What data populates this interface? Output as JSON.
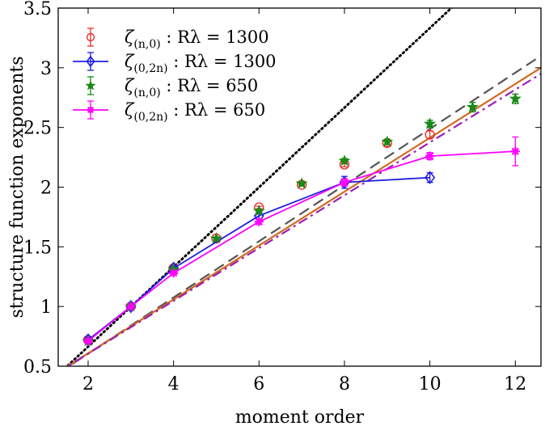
{
  "chart_data": {
    "type": "scatter",
    "xlabel": "moment order",
    "ylabel": "structure function exponents",
    "xlim": [
      1.3,
      12.6
    ],
    "ylim": [
      0.5,
      3.5
    ],
    "xticks": [
      2,
      4,
      6,
      8,
      10,
      12
    ],
    "yticks": [
      0.5,
      1,
      1.5,
      2,
      2.5,
      3,
      3.5
    ],
    "ytick_labels": [
      "0.5",
      "1",
      "1.5",
      "2",
      "2.5",
      "3",
      "3.5"
    ],
    "grid": false,
    "legend_position": "top-left",
    "series": [
      {
        "name": "ζ(n,0) : Rλ = 1300",
        "legend_main": "ζ",
        "legend_sub": "(n,0)",
        "legend_rest": " : Rλ = 1300",
        "color": "#e8302a",
        "marker": "open-circle",
        "line": false,
        "x": [
          2,
          3,
          4,
          5,
          6,
          7,
          8,
          9,
          10
        ],
        "y": [
          0.72,
          1.0,
          1.32,
          1.57,
          1.83,
          2.02,
          2.19,
          2.37,
          2.44
        ],
        "err": [
          0.01,
          0.0,
          0.01,
          0.01,
          0.01,
          0.01,
          0.02,
          0.03,
          0.03
        ]
      },
      {
        "name": "ζ(0,2n) : Rλ = 1300",
        "legend_main": "ζ",
        "legend_sub": "(0,2n)",
        "legend_rest": " : Rλ = 1300",
        "color": "#1f1fe0",
        "marker": "open-diamond",
        "line": true,
        "x": [
          2,
          3,
          4,
          6,
          8,
          10
        ],
        "y": [
          0.72,
          1.0,
          1.32,
          1.76,
          2.04,
          2.08
        ],
        "err": [
          0.02,
          0.0,
          0.02,
          0.03,
          0.05,
          0.04
        ]
      },
      {
        "name": "ζ(n,0) : Rλ = 650",
        "legend_main": "ζ",
        "legend_sub": "(n,0)",
        "legend_rest": " : Rλ = 650",
        "color": "#178a17",
        "marker": "star",
        "line": false,
        "x": [
          2,
          3,
          4,
          5,
          6,
          7,
          8,
          9,
          10,
          11,
          12
        ],
        "y": [
          0.71,
          1.0,
          1.31,
          1.57,
          1.8,
          2.03,
          2.22,
          2.38,
          2.53,
          2.67,
          2.74
        ],
        "err": [
          0.01,
          0.0,
          0.01,
          0.01,
          0.01,
          0.01,
          0.02,
          0.02,
          0.03,
          0.04,
          0.04
        ]
      },
      {
        "name": "ζ(0,2n) : Rλ = 650",
        "legend_main": "ζ",
        "legend_sub": "(0,2n)",
        "legend_rest": " : Rλ = 650",
        "color": "#ff00ff",
        "marker": "asterisk",
        "line": true,
        "x": [
          2,
          3,
          4,
          6,
          8,
          10,
          12
        ],
        "y": [
          0.71,
          1.0,
          1.28,
          1.71,
          2.04,
          2.26,
          2.3
        ],
        "err": [
          0.01,
          0.0,
          0.01,
          0.02,
          0.03,
          0.03,
          0.12
        ]
      }
    ],
    "reference_lines": [
      {
        "style": "dotted",
        "color": "#000000",
        "x": [
          1.3,
          10.95
        ],
        "y": [
          0.43,
          3.65
        ]
      },
      {
        "style": "dashed",
        "color": "#555555",
        "x": [
          1.3,
          12.6
        ],
        "y": [
          0.44,
          3.1
        ]
      },
      {
        "style": "solid",
        "color": "#d2691e",
        "x": [
          1.3,
          12.6
        ],
        "y": [
          0.45,
          3.0
        ]
      },
      {
        "style": "dashdot",
        "color": "#9b1fb5",
        "x": [
          1.3,
          12.6
        ],
        "y": [
          0.45,
          2.95
        ]
      }
    ]
  }
}
